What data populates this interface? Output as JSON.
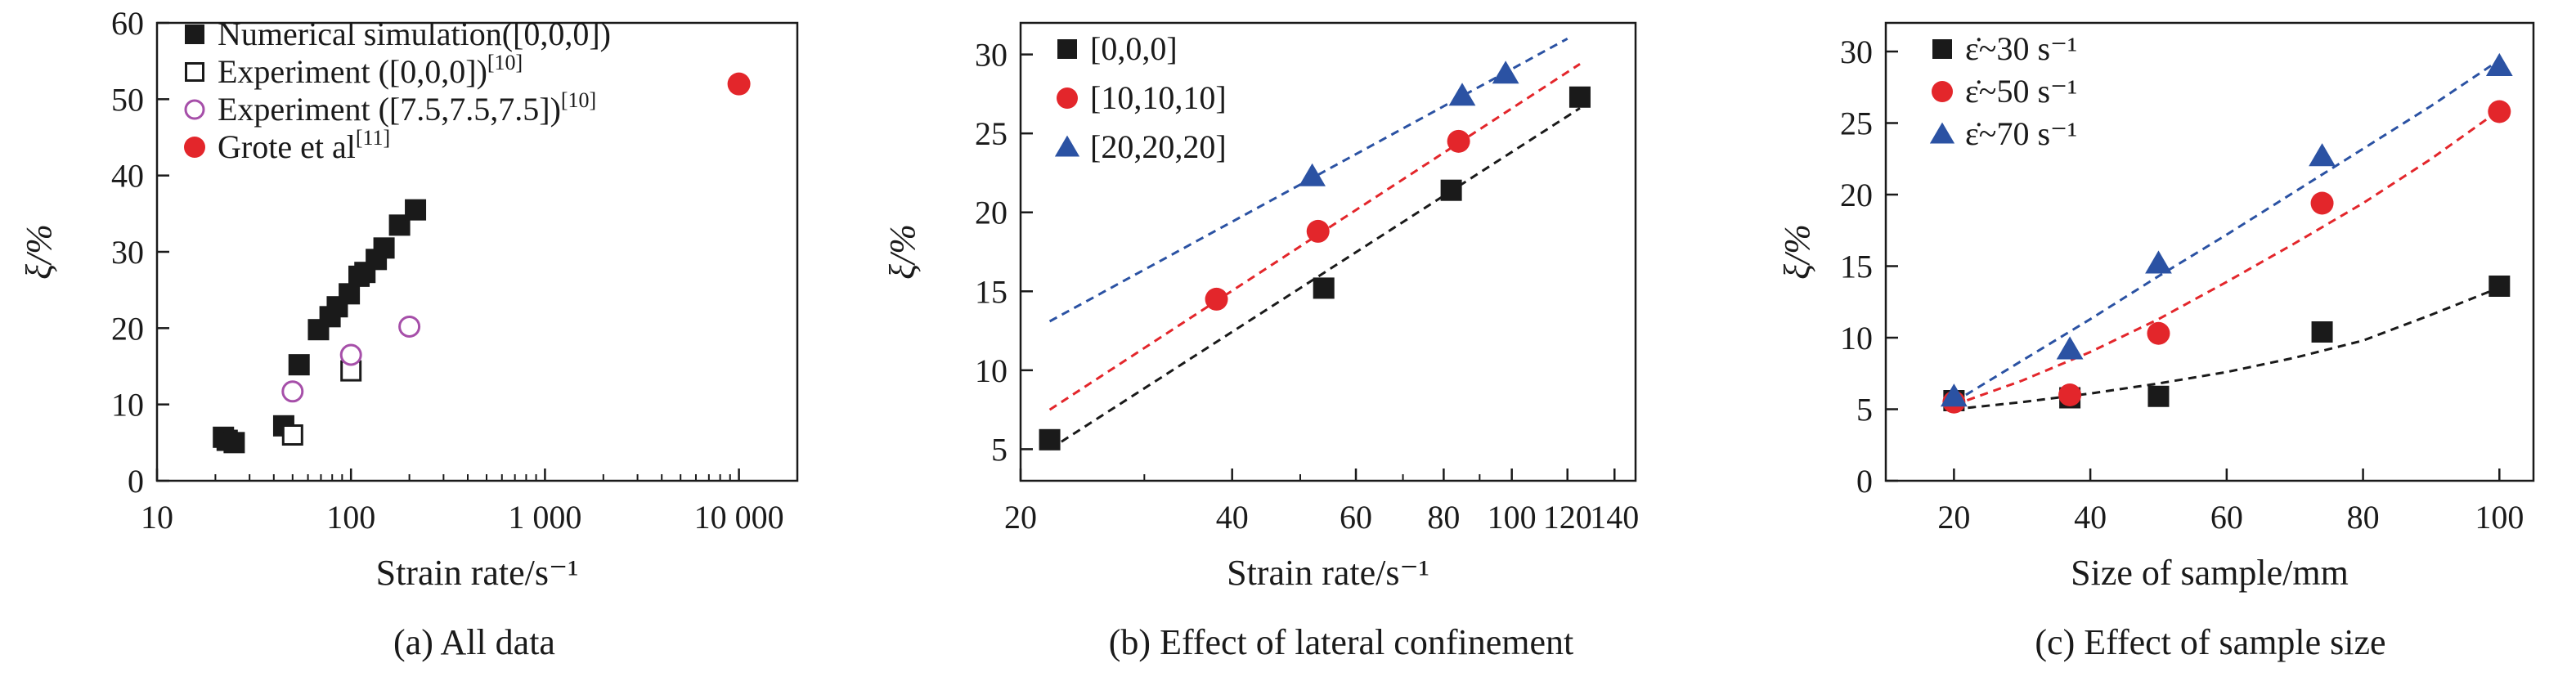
{
  "colors": {
    "black": "#1a1a1a",
    "red": "#e3262b",
    "blue": "#2b52a3",
    "purple": "#a64fa9"
  },
  "chart_data": [
    {
      "id": "a",
      "type": "scatter",
      "caption": "(a) All data",
      "xlabel": "Strain rate/s⁻¹",
      "ylabel": "ξ/%",
      "xscale": "log",
      "xlim": [
        10,
        20000
      ],
      "ylim": [
        0,
        60
      ],
      "xticks": [
        10,
        100,
        1000,
        10000
      ],
      "xtick_labels": [
        "10",
        "100",
        "1 000",
        "10 000"
      ],
      "yticks": [
        0,
        10,
        20,
        30,
        40,
        50,
        60
      ],
      "ytick_labels": [
        "0",
        "10",
        "20",
        "30",
        "40",
        "50",
        "60"
      ],
      "legend_position": "top-left",
      "series": [
        {
          "name": "Numerical simulation([0,0,0])",
          "sup": "",
          "marker": "square-filled",
          "color": "#1a1a1a",
          "x": [
            22,
            23,
            25,
            45,
            54,
            68,
            78,
            85,
            98,
            110,
            118,
            135,
            148,
            178,
            215
          ],
          "y": [
            5.7,
            5.3,
            5.0,
            7.2,
            15.2,
            19.8,
            21.5,
            22.8,
            24.5,
            26.8,
            27.3,
            29.0,
            30.5,
            33.5,
            35.5
          ]
        },
        {
          "name": "Experiment ([0,0,0])",
          "sup": "[10]",
          "marker": "square-open",
          "color": "#1a1a1a",
          "x": [
            50,
            100
          ],
          "y": [
            6.0,
            14.4
          ]
        },
        {
          "name": "Experiment ([7.5,7.5,7.5])",
          "sup": "[10]",
          "marker": "circle-open",
          "color": "#a64fa9",
          "x": [
            50,
            100,
            200
          ],
          "y": [
            11.7,
            16.5,
            20.2
          ]
        },
        {
          "name": "Grote et al",
          "sup": "[11]",
          "marker": "circle-filled",
          "color": "#e3262b",
          "x": [
            10000
          ],
          "y": [
            52
          ]
        }
      ]
    },
    {
      "id": "b",
      "type": "scatter",
      "caption": "(b) Effect of lateral confinement",
      "xlabel": "Strain rate/s⁻¹",
      "ylabel": "ξ/%",
      "xscale": "log",
      "xlim": [
        20,
        150
      ],
      "ylim": [
        3,
        32
      ],
      "xticks": [
        20,
        40,
        60,
        80,
        100,
        120,
        140
      ],
      "xtick_labels": [
        "20",
        "40",
        "60",
        "80",
        "100",
        "120",
        "140"
      ],
      "yticks": [
        5,
        10,
        15,
        20,
        25,
        30
      ],
      "ytick_labels": [
        "5",
        "10",
        "15",
        "20",
        "25",
        "30"
      ],
      "legend_position": "top-left",
      "series": [
        {
          "name": "[0,0,0]",
          "marker": "square-filled",
          "color": "#1a1a1a",
          "x": [
            22,
            54,
            82,
            125
          ],
          "y": [
            5.6,
            15.2,
            21.4,
            27.3
          ],
          "fit": {
            "x": [
              22,
              125
            ],
            "y": [
              5.0,
              26.6
            ]
          }
        },
        {
          "name": "[10,10,10]",
          "marker": "circle-filled",
          "color": "#e3262b",
          "x": [
            38,
            53,
            84
          ],
          "y": [
            14.5,
            18.8,
            24.5
          ],
          "fit": {
            "x": [
              22,
              125
            ],
            "y": [
              7.5,
              29.4
            ]
          }
        },
        {
          "name": "[20,20,20]",
          "marker": "triangle-filled",
          "color": "#2b52a3",
          "x": [
            52,
            85,
            98
          ],
          "y": [
            22.3,
            27.4,
            28.8
          ],
          "fit": {
            "x": [
              22,
              120
            ],
            "y": [
              13.1,
              31.0
            ]
          }
        }
      ]
    },
    {
      "id": "c",
      "type": "scatter",
      "caption": "(c) Effect of sample size",
      "xlabel": "Size of sample/mm",
      "ylabel": "ξ/%",
      "xscale": "linear",
      "xlim": [
        10,
        105
      ],
      "ylim": [
        0,
        32
      ],
      "xticks": [
        20,
        40,
        60,
        80,
        100
      ],
      "xtick_labels": [
        "20",
        "40",
        "60",
        "80",
        "100"
      ],
      "yticks": [
        0,
        5,
        10,
        15,
        20,
        25,
        30
      ],
      "ytick_labels": [
        "0",
        "5",
        "10",
        "15",
        "20",
        "25",
        "30"
      ],
      "legend_position": "top-left",
      "series": [
        {
          "name": "ε̇~30 s⁻¹",
          "marker": "square-filled",
          "color": "#1a1a1a",
          "x": [
            20,
            37,
            50,
            74,
            100
          ],
          "y": [
            5.6,
            5.8,
            5.9,
            10.4,
            13.6
          ],
          "fit": {
            "x": [
              20,
              30,
              40,
              50,
              60,
              70,
              80,
              90,
              100
            ],
            "y": [
              5.0,
              5.5,
              6.1,
              6.8,
              7.6,
              8.6,
              9.8,
              11.6,
              13.5
            ]
          }
        },
        {
          "name": "ε̇~50 s⁻¹",
          "marker": "circle-filled",
          "color": "#e3262b",
          "x": [
            20,
            37,
            50,
            74,
            100
          ],
          "y": [
            5.5,
            6.0,
            10.3,
            19.4,
            25.8
          ],
          "fit": {
            "x": [
              20,
              30,
              40,
              50,
              60,
              70,
              80,
              90,
              100
            ],
            "y": [
              5.3,
              7.0,
              9.0,
              11.3,
              13.9,
              16.6,
              19.4,
              22.5,
              25.9
            ]
          }
        },
        {
          "name": "ε̇~70 s⁻¹",
          "marker": "triangle-filled",
          "color": "#2b52a3",
          "x": [
            20,
            37,
            50,
            74,
            100
          ],
          "y": [
            5.9,
            9.2,
            15.2,
            22.7,
            29.0
          ],
          "fit": {
            "x": [
              20,
              30,
              40,
              50,
              60,
              70,
              80,
              90,
              100
            ],
            "y": [
              5.5,
              8.4,
              11.3,
              14.3,
              17.2,
              20.2,
              23.2,
              26.2,
              29.4
            ]
          }
        }
      ]
    }
  ]
}
